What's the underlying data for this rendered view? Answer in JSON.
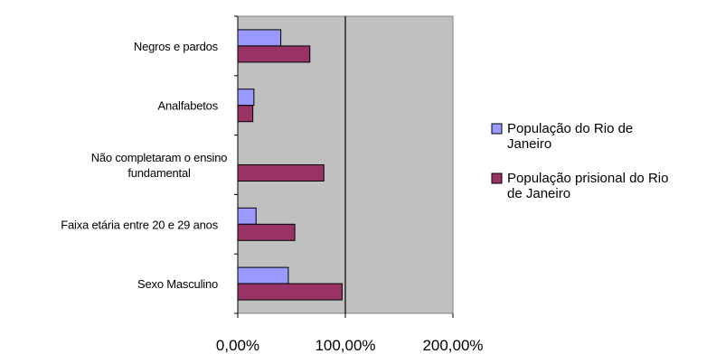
{
  "chart_data": {
    "type": "bar",
    "orientation": "horizontal",
    "categories": [
      [
        "Negros e pardos"
      ],
      [
        "Analfabetos"
      ],
      [
        "Não completaram o ensino",
        "fundamental"
      ],
      [
        "Faixa etária entre 20 e 29 anos"
      ],
      [
        "Sexo Masculino"
      ]
    ],
    "series": [
      {
        "name": [
          "População do Rio de",
          "Janeiro"
        ],
        "color": "#9999ff",
        "values": [
          40,
          15,
          0,
          17,
          47
        ]
      },
      {
        "name": [
          "População prisional do Rio",
          "de Janeiro"
        ],
        "color": "#993366",
        "values": [
          67,
          14,
          80,
          53,
          97
        ]
      }
    ],
    "xlim": [
      0,
      200
    ],
    "xticks": [
      {
        "value": 0,
        "label": "0,00%"
      },
      {
        "value": 100,
        "label": "100,00%"
      },
      {
        "value": 200,
        "label": "200,00%"
      }
    ],
    "plot_background": "#c0c0c0",
    "legend_position": "right"
  }
}
